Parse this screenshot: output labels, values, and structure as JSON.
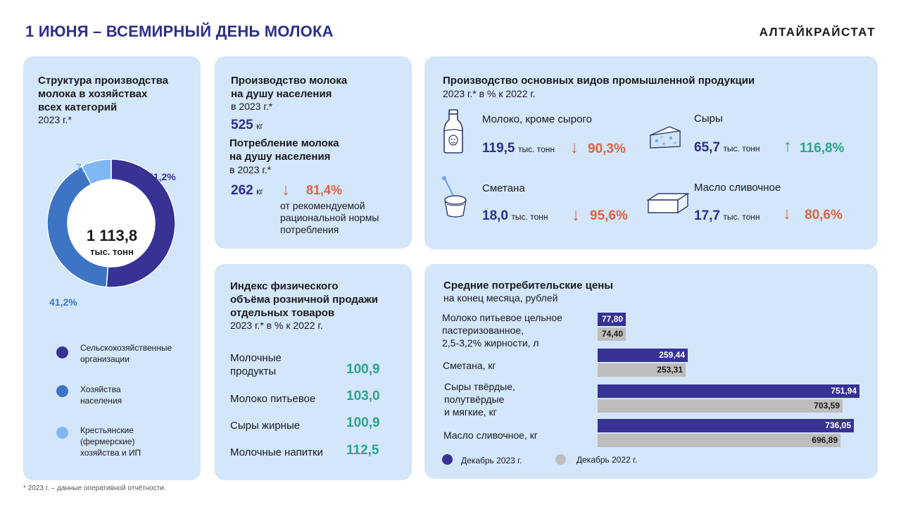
{
  "header": {
    "title": "1 ИЮНЯ – ВСЕМИРНЫЙ ДЕНЬ МОЛОКА",
    "brand": "АЛТАЙКРАЙСТАТ"
  },
  "footnote": "* 2023 г. – данные оперативной отчётности.",
  "structure": {
    "title_l1": "Структура производства",
    "title_l2": "молока в хозяйствах",
    "title_l3": "всех категорий",
    "subtitle": "2023 г.*",
    "total_value": "1 113,8",
    "total_unit": "тыс. тонн",
    "colors": [
      "#373294",
      "#3d74c4",
      "#7fb8f5"
    ],
    "chart_data": {
      "type": "pie",
      "categories": [
        "Сельскохозяйственные организации",
        "Хозяйства населения",
        "Крестьянские (фермерские) хозяйства и ИП"
      ],
      "values": [
        51.2,
        41.2,
        7.6
      ],
      "labels": [
        "51,2%",
        "41,2%",
        "7,6%"
      ]
    },
    "legend": [
      {
        "l1": "Сельскохозяйственные",
        "l2": "организации",
        "l3": ""
      },
      {
        "l1": "Хозяйства",
        "l2": "населения",
        "l3": ""
      },
      {
        "l1": "Крестьянские",
        "l2": "(фермерские)",
        "l3": "хозяйства и ИП"
      }
    ]
  },
  "per_capita": {
    "prod_title_l1": "Производство молока",
    "prod_title_l2": "на душу населения",
    "prod_sub": "в 2023 г.*",
    "prod_value": "525",
    "prod_unit": "кг",
    "cons_title_l1": "Потребление молока",
    "cons_title_l2": "на душу населения",
    "cons_sub": "в 2023 г.*",
    "cons_value": "262",
    "cons_unit": "кг",
    "cons_arrow": "↓",
    "cons_pct": "81,4%",
    "note_l1": "от рекомендуемой",
    "note_l2": "рациональной нормы",
    "note_l3": "потребления"
  },
  "industrial": {
    "title": "Производство основных видов промышленной продукции",
    "subtitle": "2023 г.* в % к 2022 г.",
    "items": [
      {
        "name": "Молоко, кроме сырого",
        "value": "119,5",
        "unit": "тыс. тонн",
        "arrow": "↓",
        "pct": "90,3%",
        "icon": "milk-bottle-icon"
      },
      {
        "name": "Сыры",
        "value": "65,7",
        "unit": "тыс. тонн",
        "arrow": "↑",
        "pct": "116,8%",
        "icon": "cheese-icon"
      },
      {
        "name": "Сметана",
        "value": "18,0",
        "unit": "тыс. тонн",
        "arrow": "↓",
        "pct": "95,6%",
        "icon": "sour-cream-icon"
      },
      {
        "name": "Масло сливочное",
        "value": "17,7",
        "unit": "тыс. тонн",
        "arrow": "↓",
        "pct": "80,6%",
        "icon": "butter-icon"
      }
    ]
  },
  "retail_index": {
    "title_l1": "Индекс физического",
    "title_l2": "объёма розничной продажи",
    "title_l3": "отдельных товаров",
    "subtitle": "2023 г.* в % к 2022 г.",
    "items": [
      {
        "l1": "Молочные",
        "l2": "продукты",
        "value": "100,9"
      },
      {
        "l1": "Молоко питьевое",
        "l2": "",
        "value": "103,0"
      },
      {
        "l1": "Сыры жирные",
        "l2": "",
        "value": "100,9"
      },
      {
        "l1": "Молочные напитки",
        "l2": "",
        "value": "112,5"
      }
    ]
  },
  "prices": {
    "title": "Средние потребительские цены",
    "subtitle": "на конец месяца, рублей",
    "colors": [
      "#373294",
      "#bdbdbd"
    ],
    "labels": [
      {
        "l1": "Молоко питьевое цельное",
        "l2": "пастеризованное,",
        "l3": "2,5-3,2% жирности, л"
      },
      {
        "l1": "Сметана, кг",
        "l2": "",
        "l3": ""
      },
      {
        "l1": "Сыры твёрдые,",
        "l2": "полутвёрдые",
        "l3": "и мягкие, кг"
      },
      {
        "l1": "Масло сливочное, кг",
        "l2": "",
        "l3": ""
      }
    ],
    "legend": [
      "Декабрь 2023 г.",
      "Декабрь 2022 г."
    ],
    "chart_data": {
      "type": "bar",
      "orientation": "horizontal",
      "categories": [
        "Молоко питьевое цельное пастеризованное, 2,5-3,2% жирности, л",
        "Сметана, кг",
        "Сыры твёрдые, полутвёрдые и мягкие, кг",
        "Масло сливочное, кг"
      ],
      "series": [
        {
          "name": "Декабрь 2023 г.",
          "values": [
            77.8,
            259.44,
            751.94,
            736.05
          ],
          "labels": [
            "77,80",
            "259,44",
            "751,94",
            "736,05"
          ]
        },
        {
          "name": "Декабрь 2022 г.",
          "values": [
            74.4,
            253.31,
            703.59,
            696.89
          ],
          "labels": [
            "74,40",
            "253,31",
            "703,59",
            "696,89"
          ]
        }
      ]
    }
  }
}
